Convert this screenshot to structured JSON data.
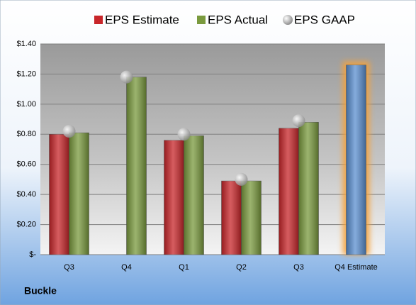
{
  "chart_data": {
    "type": "bar",
    "company": "Buckle",
    "categories": [
      "Q3",
      "Q4",
      "Q1",
      "Q2",
      "Q3",
      "Q4 Estimate"
    ],
    "series": [
      {
        "name": "EPS Estimate",
        "color": "#c8262a",
        "colors": [
          "#c8262a",
          "#c8262a",
          "#c8262a",
          "#c8262a",
          "#c8262a",
          "#5b8fd0"
        ],
        "values": [
          0.8,
          null,
          0.76,
          0.49,
          0.84,
          1.26
        ]
      },
      {
        "name": "EPS Actual",
        "color": "#7a9a3e",
        "values": [
          0.81,
          1.18,
          0.79,
          0.49,
          0.88,
          null
        ]
      },
      {
        "name": "EPS GAAP",
        "color": "#b0b0b0",
        "marker": "circle",
        "values": [
          0.82,
          1.18,
          0.8,
          0.5,
          0.89,
          null
        ]
      }
    ],
    "ylim": [
      0,
      1.4
    ],
    "yticks": [
      {
        "value": 0,
        "label": "$-"
      },
      {
        "value": 0.2,
        "label": "$0.20"
      },
      {
        "value": 0.4,
        "label": "$0.40"
      },
      {
        "value": 0.6,
        "label": "$0.60"
      },
      {
        "value": 0.8,
        "label": "$0.80"
      },
      {
        "value": 1.0,
        "label": "$1.00"
      },
      {
        "value": 1.2,
        "label": "$1.20"
      },
      {
        "value": 1.4,
        "label": "$1.40"
      }
    ],
    "grid": true
  }
}
